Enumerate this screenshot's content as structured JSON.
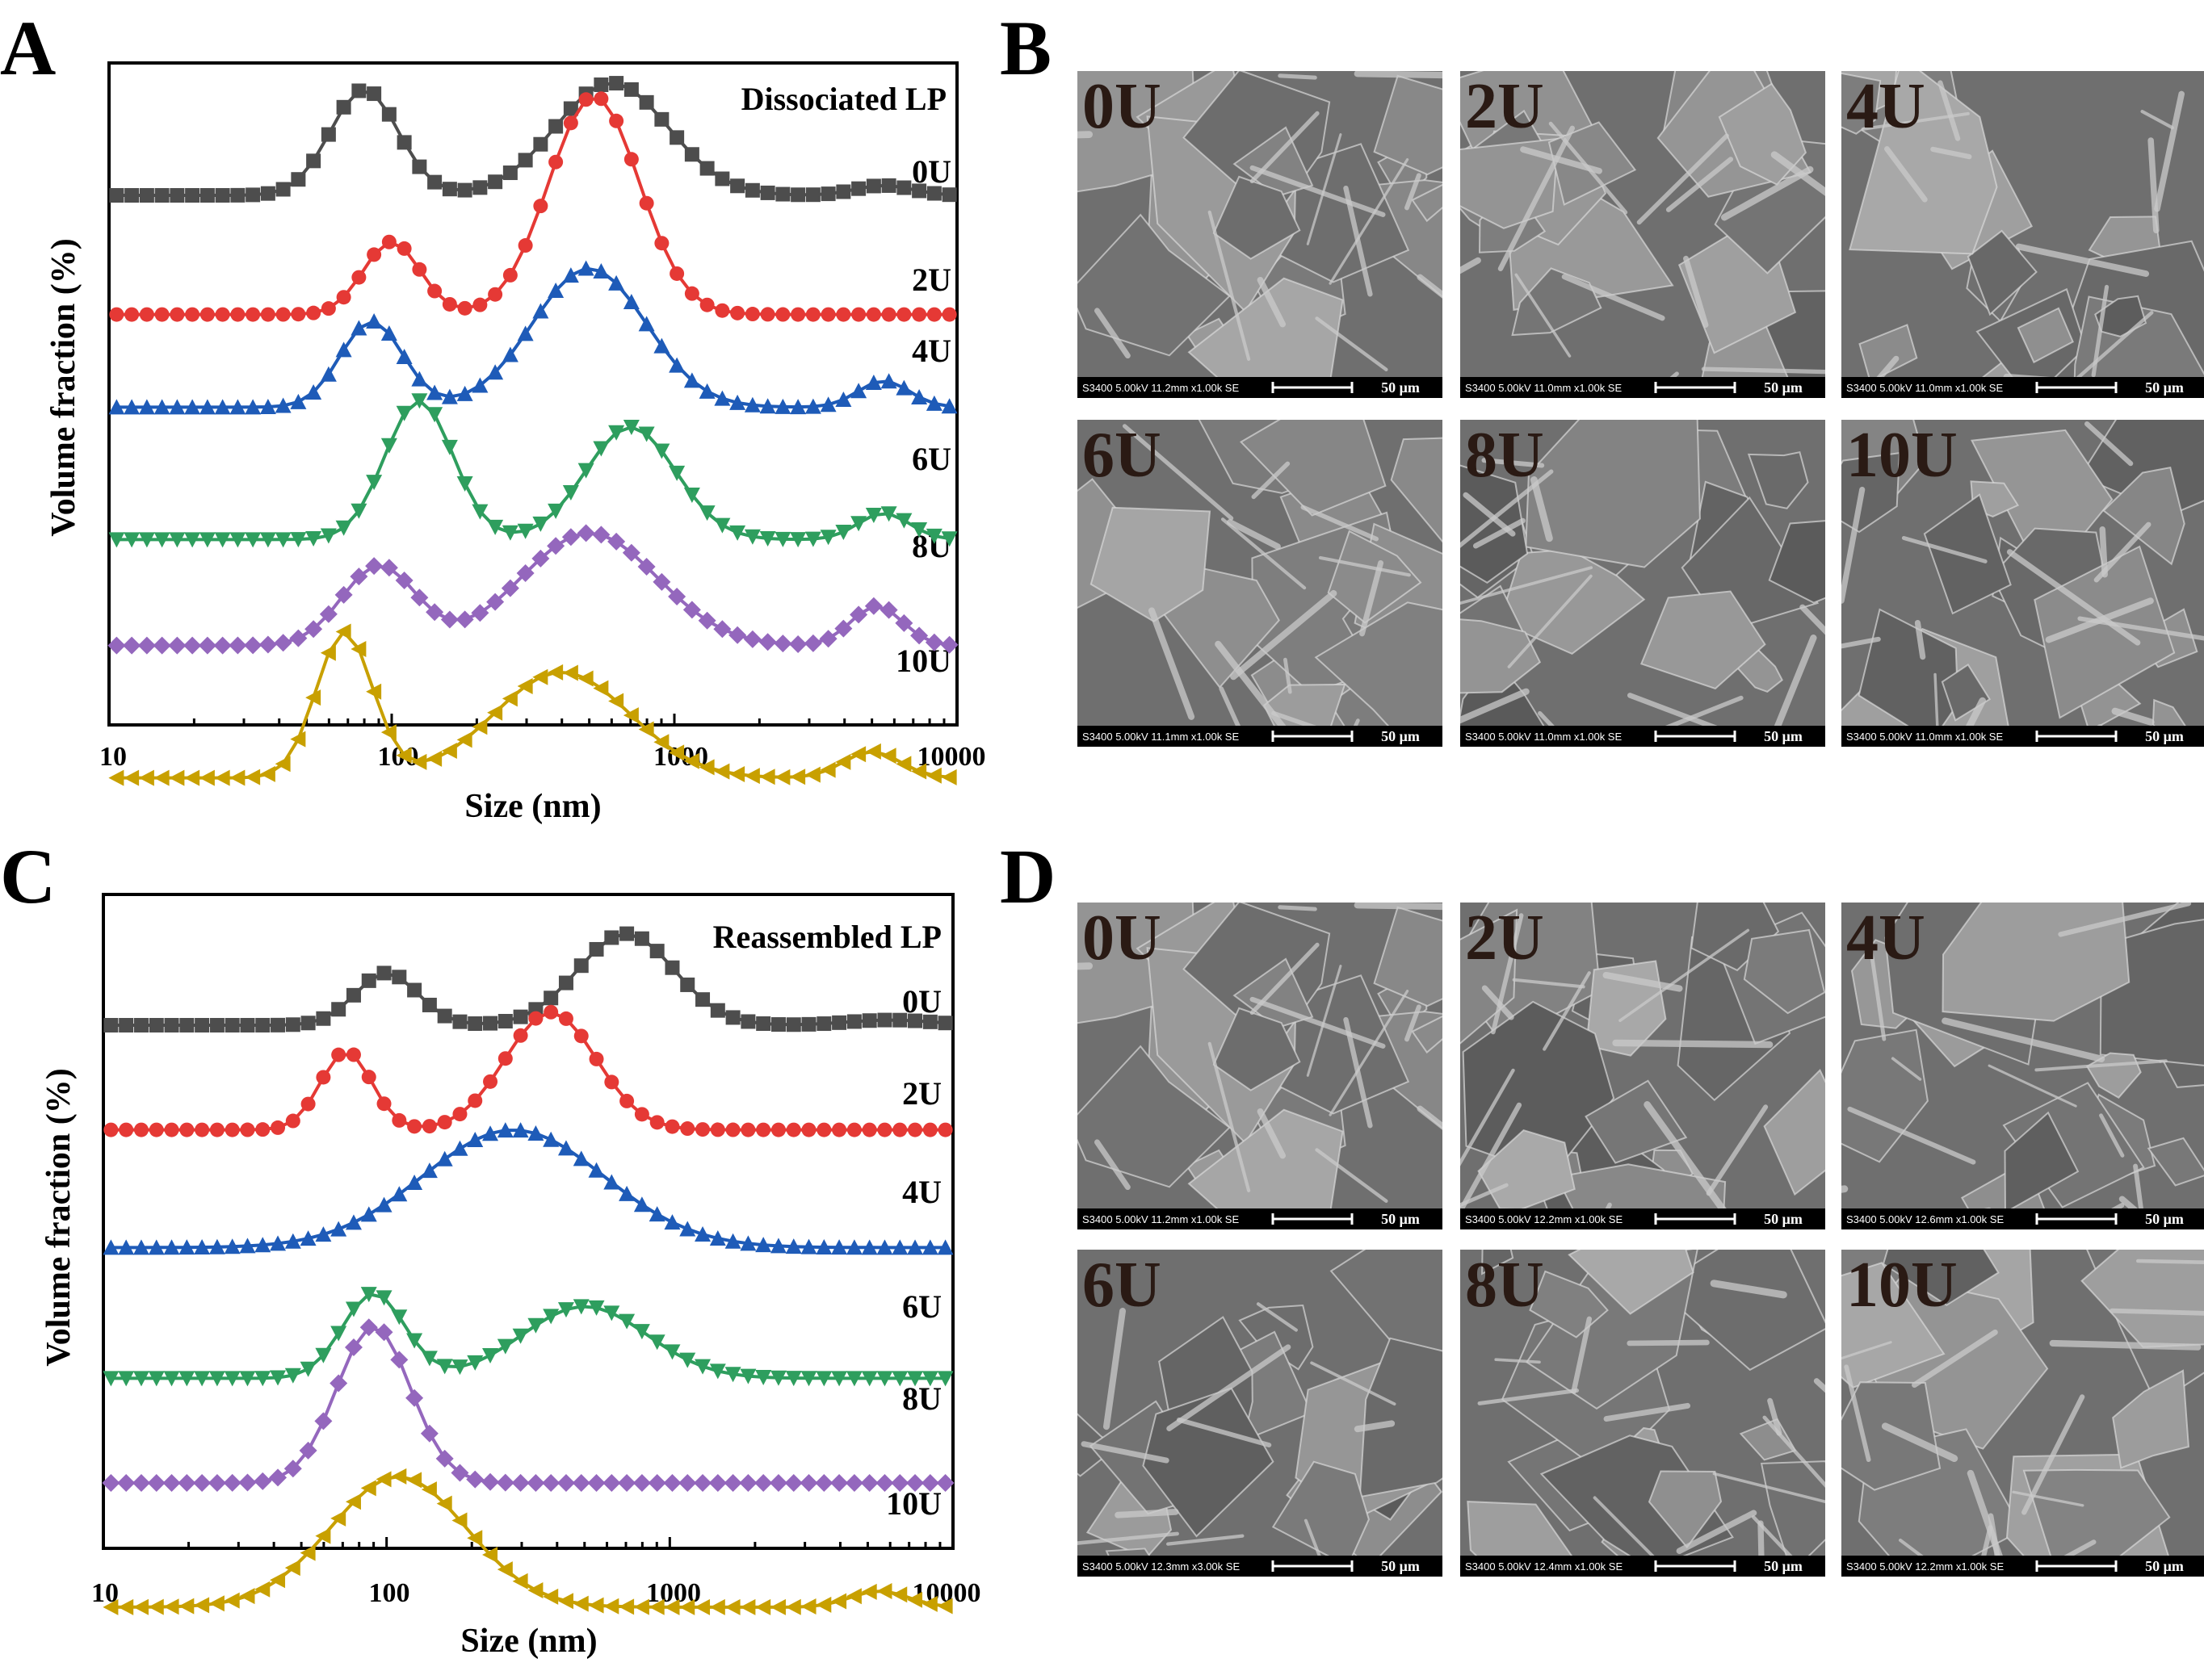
{
  "figure": {
    "panels": [
      {
        "label": "A"
      },
      {
        "label": "B"
      },
      {
        "label": "C"
      },
      {
        "label": "D"
      }
    ]
  },
  "chart_data": [
    {
      "panel": "A",
      "type": "line",
      "title": "Dissociated LP",
      "xlabel": "Size (nm)",
      "ylabel": "Volume fraction (%)",
      "xscale": "log",
      "xlim": [
        10,
        10000
      ],
      "xticks": [
        "10",
        "100",
        "1000",
        "10000"
      ],
      "ylim": [
        0,
        100
      ],
      "grid": false,
      "series": [
        {
          "name": "0U",
          "color": "#4d4d4d",
          "marker": "square",
          "baseline": 80,
          "peaks": [
            [
              80,
              0.12,
              16
            ],
            [
              600,
              0.2,
              17
            ],
            [
              5500,
              0.1,
              1.5
            ]
          ]
        },
        {
          "name": "2U",
          "color": "#e53935",
          "marker": "circle",
          "baseline": 62,
          "peaks": [
            [
              100,
              0.1,
              11
            ],
            [
              520,
              0.16,
              33
            ]
          ]
        },
        {
          "name": "4U",
          "color": "#1e5bb8",
          "marker": "triangle-up",
          "baseline": 48,
          "peaks": [
            [
              85,
              0.11,
              13
            ],
            [
              500,
              0.2,
              21
            ],
            [
              5500,
              0.09,
              4
            ]
          ]
        },
        {
          "name": "6U",
          "color": "#2e9e5e",
          "marker": "triangle-down",
          "baseline": 28,
          "peaks": [
            [
              125,
              0.12,
              21
            ],
            [
              700,
              0.16,
              17
            ],
            [
              5500,
              0.09,
              4
            ]
          ]
        },
        {
          "name": "8U",
          "color": "#9467bd",
          "marker": "diamond",
          "baseline": 12,
          "peaks": [
            [
              90,
              0.13,
              12
            ],
            [
              500,
              0.24,
              17
            ],
            [
              5200,
              0.09,
              6
            ]
          ]
        },
        {
          "name": "10U",
          "color": "#c8a000",
          "marker": "triangle-left",
          "baseline": -8,
          "peaks": [
            [
              68,
              0.1,
              22
            ],
            [
              400,
              0.24,
              16
            ],
            [
              5000,
              0.1,
              4
            ]
          ]
        }
      ]
    },
    {
      "panel": "C",
      "type": "line",
      "title": "Reassembled LP",
      "xlabel": "Size (nm)",
      "ylabel": "Volume fraction (%)",
      "xscale": "log",
      "xlim": [
        10,
        10000
      ],
      "xticks": [
        "10",
        "100",
        "1000",
        "10000"
      ],
      "ylim": [
        0,
        100
      ],
      "grid": false,
      "series": [
        {
          "name": "0U",
          "color": "#4d4d4d",
          "marker": "square",
          "baseline": 80,
          "peaks": [
            [
              100,
              0.11,
              8
            ],
            [
              700,
              0.17,
              14
            ],
            [
              6000,
              0.15,
              0.8
            ]
          ]
        },
        {
          "name": "2U",
          "color": "#e53935",
          "marker": "circle",
          "baseline": 64,
          "peaks": [
            [
              72,
              0.09,
              12
            ],
            [
              380,
              0.16,
              18
            ]
          ]
        },
        {
          "name": "4U",
          "color": "#1e5bb8",
          "marker": "triangle-up",
          "baseline": 46,
          "peaks": [
            [
              280,
              0.32,
              18
            ]
          ]
        },
        {
          "name": "6U",
          "color": "#2e9e5e",
          "marker": "triangle-down",
          "baseline": 26,
          "peaks": [
            [
              90,
              0.11,
              13
            ],
            [
              500,
              0.22,
              11
            ]
          ]
        },
        {
          "name": "8U",
          "color": "#9467bd",
          "marker": "diamond",
          "baseline": 10,
          "peaks": [
            [
              90,
              0.13,
              24
            ]
          ]
        },
        {
          "name": "10U",
          "color": "#c8a000",
          "marker": "triangle-left",
          "baseline": -9,
          "peaks": [
            [
              110,
              0.24,
              20
            ],
            [
              5500,
              0.1,
              2.5
            ]
          ]
        }
      ]
    }
  ],
  "sem_panels": [
    {
      "panel": "B",
      "tiles": [
        {
          "label": "0U",
          "info": "S3400 5.00kV 11.2mm x1.00k SE",
          "scale": "50 μm",
          "seed": 11
        },
        {
          "label": "2U",
          "info": "S3400 5.00kV 11.0mm x1.00k SE",
          "scale": "50 μm",
          "seed": 23
        },
        {
          "label": "4U",
          "info": "S3400 5.00kV 11.0mm x1.00k SE",
          "scale": "50 μm",
          "seed": 37
        },
        {
          "label": "6U",
          "info": "S3400 5.00kV 11.1mm x1.00k SE",
          "scale": "50 μm",
          "seed": 41
        },
        {
          "label": "8U",
          "info": "S3400 5.00kV 11.0mm x1.00k SE",
          "scale": "50 μm",
          "seed": 53
        },
        {
          "label": "10U",
          "info": "S3400 5.00kV 11.0mm x1.00k SE",
          "scale": "50 μm",
          "seed": 67
        }
      ]
    },
    {
      "panel": "D",
      "tiles": [
        {
          "label": "0U",
          "info": "S3400 5.00kV 11.2mm x1.00k SE",
          "scale": "50 μm",
          "seed": 11
        },
        {
          "label": "2U",
          "info": "S3400 5.00kV 12.2mm x1.00k SE",
          "scale": "50 μm",
          "seed": 79
        },
        {
          "label": "4U",
          "info": "S3400 5.00kV 12.6mm x1.00k SE",
          "scale": "50 μm",
          "seed": 83
        },
        {
          "label": "6U",
          "info": "S3400 5.00kV 12.3mm x3.00k SE",
          "scale": "50 μm",
          "seed": 97
        },
        {
          "label": "8U",
          "info": "S3400 5.00kV 12.4mm x1.00k SE",
          "scale": "50 μm",
          "seed": 101
        },
        {
          "label": "10U",
          "info": "S3400 5.00kV 12.2mm x1.00k SE",
          "scale": "50 μm",
          "seed": 113
        }
      ]
    }
  ]
}
